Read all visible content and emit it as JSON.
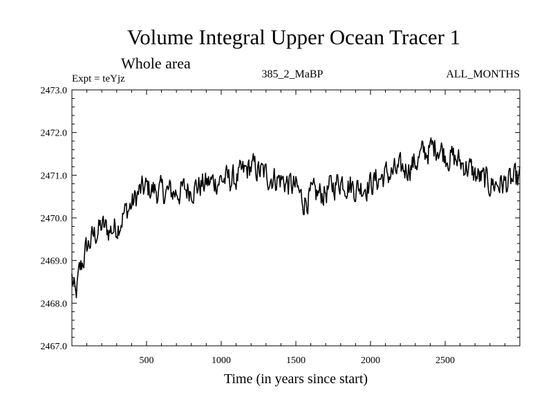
{
  "chart_data": {
    "type": "line",
    "title": "Volume Integral Upper Ocean Tracer 1",
    "subtitle": "Whole area",
    "expt_label": "Expt = teYjz",
    "run_label": "385_2_MaBP",
    "months_label": "ALL_MONTHS",
    "xlabel": "Time (in years since start)",
    "ylabel": "",
    "xlim": [
      0,
      3000
    ],
    "ylim": [
      2467.0,
      2473.0
    ],
    "x_ticks": [
      500,
      1000,
      1500,
      2000,
      2500
    ],
    "y_ticks": [
      "2467.0",
      "2468.0",
      "2469.0",
      "2470.0",
      "2471.0",
      "2472.0",
      "2473.0"
    ],
    "series": [
      {
        "name": "Tracer 1",
        "x": [
          0,
          25,
          50,
          75,
          100,
          150,
          200,
          250,
          300,
          350,
          400,
          450,
          500,
          600,
          700,
          800,
          900,
          1000,
          1100,
          1200,
          1300,
          1400,
          1500,
          1550,
          1600,
          1700,
          1800,
          1900,
          2000,
          2100,
          2200,
          2300,
          2350,
          2400,
          2450,
          2500,
          2550,
          2600,
          2650,
          2700,
          2800,
          2900,
          3000
        ],
        "values": [
          2468.6,
          2468.1,
          2468.7,
          2469.0,
          2469.3,
          2469.6,
          2469.8,
          2469.7,
          2469.8,
          2470.1,
          2470.3,
          2470.6,
          2470.7,
          2470.6,
          2470.6,
          2470.7,
          2470.8,
          2470.9,
          2470.9,
          2471.2,
          2471.0,
          2470.9,
          2470.7,
          2470.4,
          2470.5,
          2470.6,
          2470.9,
          2470.7,
          2470.8,
          2471.0,
          2471.1,
          2471.3,
          2471.5,
          2471.6,
          2471.7,
          2471.5,
          2471.4,
          2471.3,
          2471.2,
          2471.0,
          2470.8,
          2470.8,
          2470.9
        ],
        "noise_amplitude": 0.28
      }
    ]
  }
}
